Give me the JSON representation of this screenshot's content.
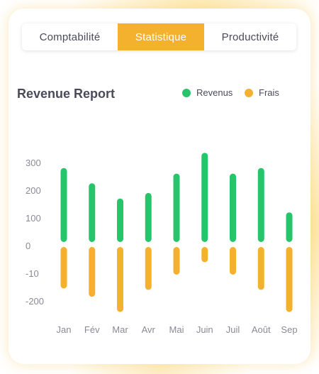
{
  "tabs": [
    {
      "label": "Comptabilité",
      "active": false
    },
    {
      "label": "Statistique",
      "active": true
    },
    {
      "label": "Productivité",
      "active": false
    }
  ],
  "colors": {
    "accent": "#f3b12d",
    "revenus": "#27c56b",
    "frais": "#f3b12d"
  },
  "chart_data": {
    "type": "bar",
    "title": "Revenue Report",
    "categories": [
      "Jan",
      "Fév",
      "Mar",
      "Avr",
      "Mai",
      "Juin",
      "Juil",
      "Août",
      "Sep"
    ],
    "series": [
      {
        "name": "Revenus",
        "color": "#27c56b",
        "values": [
          280,
          225,
          170,
          190,
          260,
          335,
          260,
          280,
          120
        ]
      },
      {
        "name": "Frais",
        "color": "#f3b12d",
        "values": [
          -155,
          -185,
          -240,
          -160,
          -105,
          -60,
          -105,
          -160,
          -240
        ]
      }
    ],
    "yticks": [
      300,
      200,
      100,
      0,
      -10,
      -200
    ],
    "ylim": [
      -250,
      350
    ],
    "legend": "top-right",
    "grid": false
  }
}
